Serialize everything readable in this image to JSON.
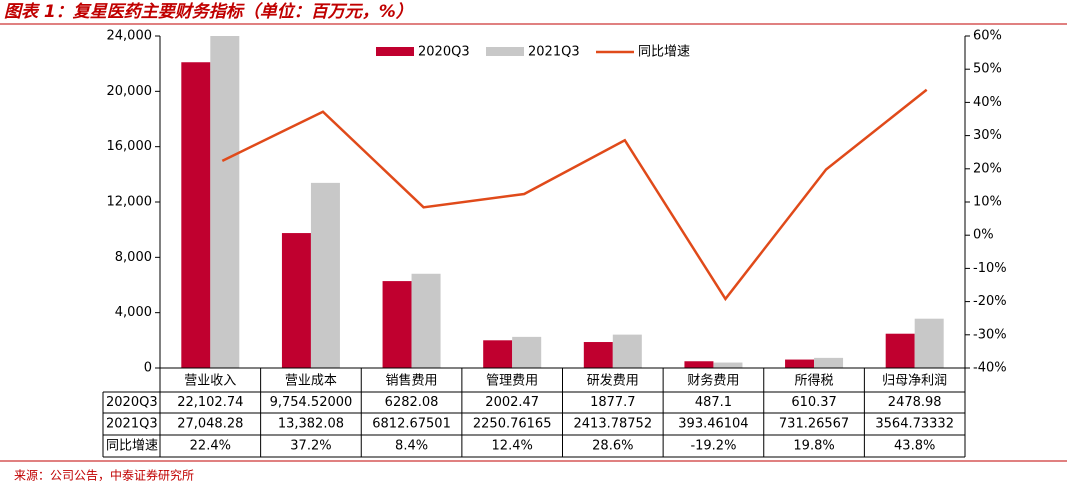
{
  "chart_data": {
    "type": "bar",
    "title": "图表 1：复星医药主要财务指标（单位：百万元，%）",
    "source": "来源：公司公告，中泰证券研究所",
    "categories": [
      "营业收入",
      "营业成本",
      "销售费用",
      "管理费用",
      "研发费用",
      "财务费用",
      "所得税",
      "归母净利润"
    ],
    "series": [
      {
        "name": "2020Q3",
        "type": "bar",
        "color": "#c0002f",
        "values": [
          22102.74,
          9754.52,
          6282.08,
          2002.47,
          1877.7,
          487.1,
          610.37,
          2478.98
        ],
        "value_labels": [
          "22,102.74",
          "9,754.52000",
          "6282.08",
          "2002.47",
          "1877.7",
          "487.1",
          "610.37",
          "2478.98"
        ]
      },
      {
        "name": "2021Q3",
        "type": "bar",
        "color": "#c8c8c8",
        "values": [
          27048.28,
          13382.08,
          6812.67501,
          2250.76165,
          2413.78752,
          393.46104,
          731.26567,
          3564.73332
        ],
        "value_labels": [
          "27,048.28",
          "13,382.08",
          "6812.67501",
          "2250.76165",
          "2413.78752",
          "393.46104",
          "731.26567",
          "3564.73332"
        ]
      },
      {
        "name": "同比增速",
        "type": "line",
        "axis": "y2",
        "color": "#e04a1a",
        "values": [
          22.4,
          37.2,
          8.4,
          12.4,
          28.6,
          -19.2,
          19.8,
          43.8
        ],
        "value_labels": [
          "22.4%",
          "37.2%",
          "8.4%",
          "12.4%",
          "28.6%",
          "-19.2%",
          "19.8%",
          "43.8%"
        ]
      }
    ],
    "ylim": [
      0,
      24000
    ],
    "yticks": [
      0,
      {
        "value": 4000,
        "label": "4,000"
      },
      {
        "value": 8000,
        "label": "8,000"
      },
      {
        "value": 12000,
        "label": "12,000"
      },
      {
        "value": 16000,
        "label": "16,000"
      },
      {
        "value": 20000,
        "label": "20,000"
      },
      {
        "value": 24000,
        "label": "24,000"
      }
    ],
    "y2lim": [
      -40,
      60
    ],
    "y2ticks": [
      {
        "value": -40,
        "label": "-40%"
      },
      {
        "value": -30,
        "label": "-30%"
      },
      {
        "value": -20,
        "label": "-20%"
      },
      {
        "value": -10,
        "label": "-10%"
      },
      {
        "value": 0,
        "label": "0%"
      },
      {
        "value": 10,
        "label": "10%"
      },
      {
        "value": 20,
        "label": "20%"
      },
      {
        "value": 30,
        "label": "30%"
      },
      {
        "value": 40,
        "label": "40%"
      },
      {
        "value": 50,
        "label": "50%"
      },
      {
        "value": 60,
        "label": "60%"
      }
    ],
    "legend": "top"
  }
}
